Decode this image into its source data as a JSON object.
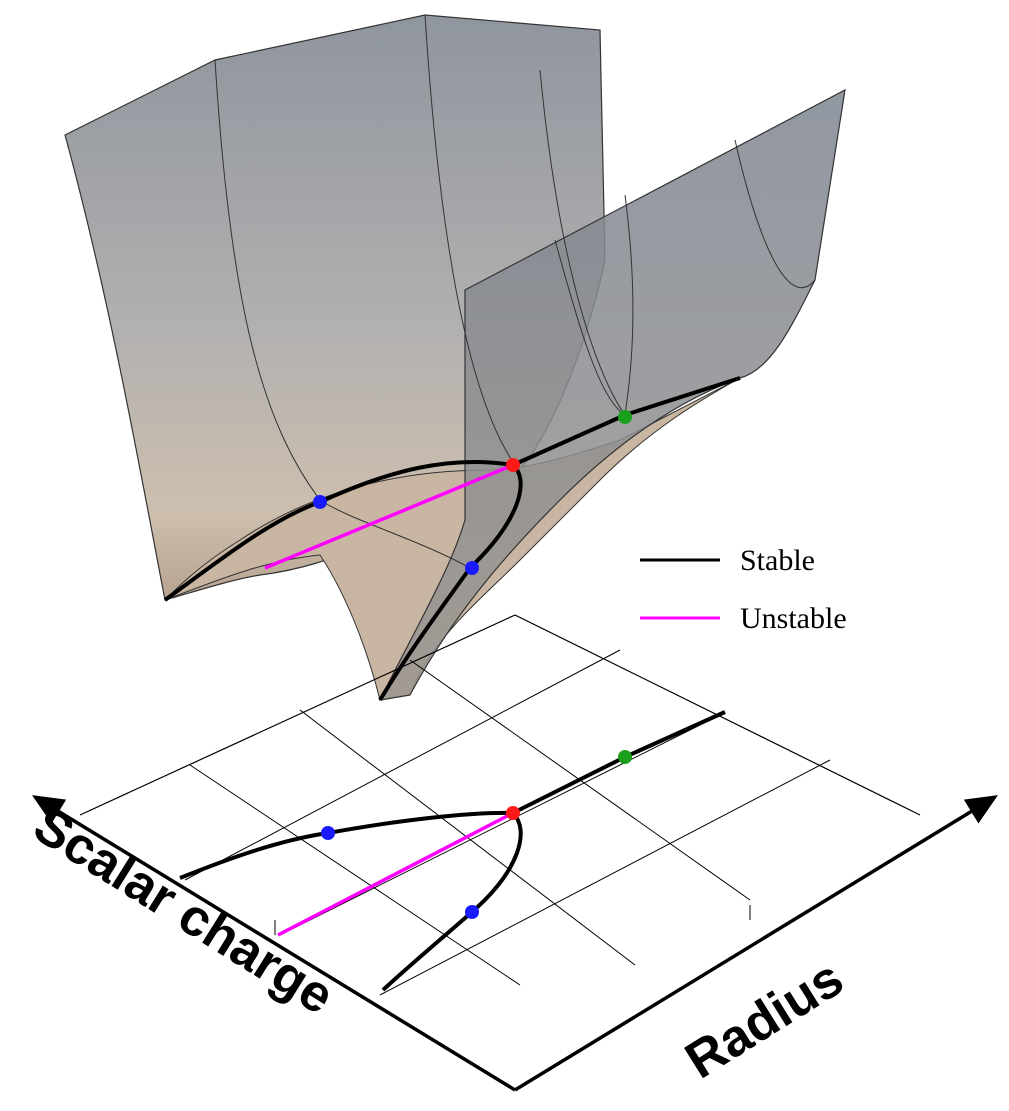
{
  "legend": {
    "stable": "Stable",
    "unstable": "Unstable"
  },
  "axes": {
    "x_label": "Scalar charge",
    "y_label": "Radius"
  }
}
